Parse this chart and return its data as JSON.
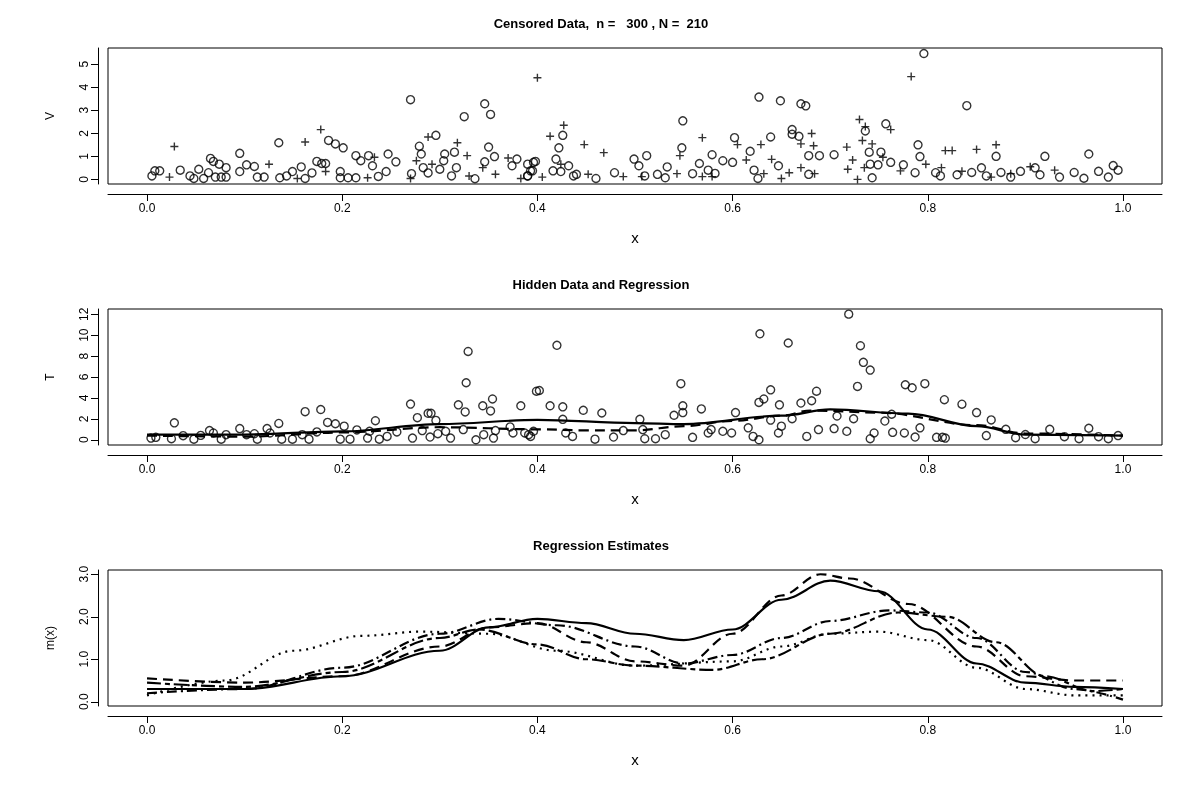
{
  "chart_data": [
    {
      "type": "scatter",
      "title": "Censored Data,  n =   300 , N =  210",
      "xlabel": "x",
      "ylabel": "V",
      "xlim": [
        -0.04,
        1.04
      ],
      "ylim": [
        -0.2,
        5.7
      ],
      "xticks": [
        {
          "value": 0,
          "label": "0.0"
        },
        {
          "value": 0.2,
          "label": "0.2"
        },
        {
          "value": 0.4,
          "label": "0.4"
        },
        {
          "value": 0.6,
          "label": "0.6"
        },
        {
          "value": 0.8,
          "label": "0.8"
        },
        {
          "value": 1,
          "label": "1.0"
        }
      ],
      "yticks": [
        0,
        1,
        2,
        3,
        4,
        5
      ],
      "series": [
        {
          "color": "#000000",
          "marker": "circle",
          "x": [
            0.005,
            0.008,
            0.013,
            0.034,
            0.044,
            0.048,
            0.053,
            0.058,
            0.063,
            0.065,
            0.068,
            0.07,
            0.074,
            0.076,
            0.081,
            0.081,
            0.095,
            0.095,
            0.102,
            0.11,
            0.113,
            0.12,
            0.135,
            0.136,
            0.143,
            0.149,
            0.158,
            0.162,
            0.169,
            0.174,
            0.179,
            0.183,
            0.186,
            0.193,
            0.201,
            0.198,
            0.198,
            0.206,
            0.214,
            0.214,
            0.219,
            0.227,
            0.231,
            0.237,
            0.245,
            0.247,
            0.255,
            0.27,
            0.271,
            0.279,
            0.281,
            0.283,
            0.288,
            0.296,
            0.3,
            0.304,
            0.305,
            0.312,
            0.315,
            0.317,
            0.325,
            0.336,
            0.346,
            0.346,
            0.352,
            0.35,
            0.356,
            0.374,
            0.379,
            0.39,
            0.39,
            0.395,
            0.398,
            0.39,
            0.396,
            0.393,
            0.416,
            0.419,
            0.426,
            0.422,
            0.432,
            0.424,
            0.437,
            0.44,
            0.46,
            0.479,
            0.499,
            0.504,
            0.512,
            0.51,
            0.523,
            0.531,
            0.533,
            0.548,
            0.549,
            0.559,
            0.566,
            0.575,
            0.579,
            0.582,
            0.59,
            0.6,
            0.602,
            0.618,
            0.622,
            0.626,
            0.627,
            0.639,
            0.647,
            0.649,
            0.661,
            0.661,
            0.668,
            0.67,
            0.675,
            0.678,
            0.678,
            0.689,
            0.704,
            0.736,
            0.74,
            0.741,
            0.743,
            0.749,
            0.752,
            0.757,
            0.762,
            0.775,
            0.787,
            0.79,
            0.792,
            0.796,
            0.808,
            0.813,
            0.83,
            0.84,
            0.845,
            0.855,
            0.86,
            0.87,
            0.875,
            0.885,
            0.895,
            0.91,
            0.915,
            0.92,
            0.935,
            0.95,
            0.96,
            0.965,
            0.975,
            0.985,
            0.99,
            0.995
          ],
          "values": [
            0.15,
            0.37,
            0.37,
            0.4,
            0.15,
            0.04,
            0.44,
            0.04,
            0.29,
            0.91,
            0.78,
            0.1,
            0.66,
            0.1,
            0.51,
            0.1,
            1.13,
            0.34,
            0.63,
            0.56,
            0.1,
            0.1,
            1.59,
            0.07,
            0.15,
            0.34,
            0.54,
            0.04,
            0.28,
            0.78,
            0.69,
            0.69,
            1.69,
            1.54,
            1.37,
            0.34,
            0.07,
            0.07,
            0.07,
            1.03,
            0.81,
            1.03,
            0.59,
            0.13,
            0.34,
            1.1,
            0.76,
            3.46,
            0.25,
            1.44,
            1.1,
            0.51,
            0.28,
            1.91,
            0.44,
            0.81,
            1.1,
            0.15,
            1.18,
            0.51,
            2.72,
            0.03,
            0.76,
            3.28,
            2.82,
            1.4,
            0.99,
            0.59,
            0.88,
            0.15,
            0.66,
            0.37,
            0.78,
            0.15,
            0.74,
            0.37,
            0.37,
            0.88,
            1.91,
            1.37,
            0.59,
            0.34,
            0.15,
            0.22,
            0.04,
            0.29,
            0.88,
            0.59,
            1.03,
            0.15,
            0.22,
            0.07,
            0.54,
            1.37,
            2.54,
            0.25,
            0.69,
            0.4,
            1.07,
            0.26,
            0.81,
            0.74,
            1.81,
            1.22,
            0.4,
            0.04,
            3.57,
            1.84,
            0.59,
            3.41,
            2.16,
            1.96,
            1.87,
            3.28,
            3.19,
            1.03,
            0.22,
            1.03,
            1.07,
            2.1,
            1.18,
            0.66,
            0.07,
            0.63,
            1.18,
            2.41,
            0.74,
            0.63,
            0.29,
            1.5,
            0.99,
            5.46,
            0.29,
            0.15,
            0.2,
            3.2,
            0.3,
            0.5,
            0.15,
            1.0,
            0.3,
            0.1,
            0.35,
            0.5,
            0.2,
            1.0,
            0.1,
            0.3,
            0.05,
            1.1,
            0.35,
            0.1,
            0.6,
            0.4
          ]
        },
        {
          "color": "#000000",
          "marker": "cross",
          "x": [
            0.028,
            0.023,
            0.125,
            0.154,
            0.162,
            0.178,
            0.183,
            0.226,
            0.233,
            0.27,
            0.276,
            0.288,
            0.292,
            0.318,
            0.328,
            0.33,
            0.344,
            0.357,
            0.37,
            0.383,
            0.4,
            0.405,
            0.413,
            0.427,
            0.424,
            0.448,
            0.452,
            0.468,
            0.488,
            0.507,
            0.543,
            0.546,
            0.569,
            0.569,
            0.579,
            0.605,
            0.614,
            0.629,
            0.632,
            0.64,
            0.65,
            0.658,
            0.67,
            0.67,
            0.681,
            0.683,
            0.684,
            0.717,
            0.718,
            0.723,
            0.728,
            0.73,
            0.733,
            0.735,
            0.736,
            0.743,
            0.754,
            0.762,
            0.772,
            0.783,
            0.798,
            0.814,
            0.818,
            0.825,
            0.835,
            0.85,
            0.865,
            0.87,
            0.885,
            0.905,
            0.93
          ],
          "values": [
            1.43,
            0.1,
            0.66,
            0.04,
            1.62,
            2.16,
            0.34,
            0.07,
            0.96,
            0.04,
            0.81,
            1.84,
            0.66,
            1.59,
            1.03,
            0.15,
            0.51,
            0.22,
            0.93,
            0.04,
            4.41,
            0.1,
            1.87,
            2.35,
            0.66,
            1.51,
            0.22,
            1.16,
            0.12,
            0.12,
            0.25,
            1.03,
            1.81,
            0.12,
            0.12,
            1.51,
            0.84,
            1.51,
            0.25,
            0.87,
            0.04,
            0.29,
            0.51,
            1.54,
            1.99,
            1.46,
            0.25,
            1.4,
            0.44,
            0.84,
            0.0,
            2.6,
            1.69,
            0.51,
            2.29,
            1.54,
            0.96,
            2.16,
            0.37,
            4.46,
            0.66,
            0.51,
            1.25,
            1.25,
            0.35,
            1.3,
            0.1,
            1.5,
            0.25,
            0.55,
            0.4
          ]
        }
      ]
    },
    {
      "type": "scatter",
      "title": "Hidden Data and Regression",
      "xlabel": "x",
      "ylabel": "T",
      "xlim": [
        -0.04,
        1.04
      ],
      "ylim": [
        -0.5,
        12.5
      ],
      "xticks": [
        {
          "value": 0,
          "label": "0.0"
        },
        {
          "value": 0.2,
          "label": "0.2"
        },
        {
          "value": 0.4,
          "label": "0.4"
        },
        {
          "value": 0.6,
          "label": "0.6"
        },
        {
          "value": 0.8,
          "label": "0.8"
        },
        {
          "value": 1,
          "label": "1.0"
        }
      ],
      "yticks": [
        0,
        2,
        4,
        6,
        8,
        10,
        12
      ],
      "series": [
        {
          "color": "#000000",
          "marker": "circle",
          "x": [
            0.004,
            0.009,
            0.028,
            0.025,
            0.037,
            0.048,
            0.055,
            0.064,
            0.068,
            0.076,
            0.081,
            0.095,
            0.102,
            0.11,
            0.113,
            0.123,
            0.126,
            0.135,
            0.138,
            0.149,
            0.159,
            0.162,
            0.166,
            0.174,
            0.178,
            0.185,
            0.193,
            0.202,
            0.198,
            0.208,
            0.215,
            0.226,
            0.228,
            0.234,
            0.238,
            0.246,
            0.256,
            0.27,
            0.272,
            0.277,
            0.282,
            0.288,
            0.291,
            0.29,
            0.296,
            0.298,
            0.306,
            0.311,
            0.319,
            0.324,
            0.326,
            0.327,
            0.329,
            0.337,
            0.344,
            0.345,
            0.352,
            0.354,
            0.355,
            0.357,
            0.372,
            0.375,
            0.383,
            0.391,
            0.396,
            0.399,
            0.387,
            0.393,
            0.402,
            0.413,
            0.42,
            0.426,
            0.426,
            0.429,
            0.436,
            0.447,
            0.459,
            0.466,
            0.478,
            0.488,
            0.505,
            0.508,
            0.51,
            0.521,
            0.531,
            0.54,
            0.547,
            0.549,
            0.549,
            0.559,
            0.568,
            0.575,
            0.578,
            0.59,
            0.599,
            0.603,
            0.616,
            0.621,
            0.627,
            0.627,
            0.628,
            0.632,
            0.639,
            0.639,
            0.647,
            0.648,
            0.65,
            0.657,
            0.661,
            0.67,
            0.676,
            0.681,
            0.686,
            0.688,
            0.704,
            0.707,
            0.717,
            0.719,
            0.724,
            0.728,
            0.731,
            0.734,
            0.741,
            0.741,
            0.745,
            0.756,
            0.763,
            0.764,
            0.776,
            0.777,
            0.784,
            0.787,
            0.792,
            0.797,
            0.809,
            0.815,
            0.817,
            0.818,
            0.835,
            0.85,
            0.86,
            0.865,
            0.88,
            0.89,
            0.9,
            0.91,
            0.925,
            0.94,
            0.955,
            0.965,
            0.975,
            0.985,
            0.995
          ],
          "values": [
            0.16,
            0.23,
            1.62,
            0.1,
            0.39,
            0.06,
            0.42,
            0.88,
            0.65,
            0.06,
            0.49,
            1.07,
            0.49,
            0.58,
            0.06,
            1.07,
            0.65,
            1.56,
            0.06,
            0.06,
            0.49,
            2.69,
            0.06,
            0.75,
            2.89,
            1.66,
            1.53,
            1.3,
            0.06,
            0.06,
            0.94,
            0.16,
            0.81,
            1.82,
            0.06,
            0.32,
            0.75,
            3.41,
            0.16,
            2.11,
            0.88,
            2.53,
            2.53,
            0.26,
            1.85,
            0.58,
            0.81,
            0.16,
            3.34,
            0.97,
            2.66,
            5.45,
            8.44,
            0,
            3.25,
            0.49,
            2.76,
            3.9,
            0.16,
            0.88,
            1.23,
            0.65,
            3.25,
            0.49,
            0.81,
            4.64,
            0.65,
            0.32,
            4.71,
            3.25,
            9.03,
            3.15,
            1.95,
            0.65,
            0.32,
            2.82,
            0.06,
            2.56,
            0.26,
            0.88,
            1.95,
            0.97,
            0.1,
            0.1,
            0.49,
            2.34,
            5.36,
            3.25,
            2.6,
            0.23,
            2.95,
            0.65,
            0.97,
            0.81,
            0.65,
            2.6,
            1.14,
            0.32,
            0,
            3.57,
            10.13,
            3.9,
            4.77,
            1.88,
            0.65,
            3.34,
            1.3,
            9.25,
            2.01,
            3.51,
            0.32,
            3.73,
            4.64,
            0.97,
            1.07,
            2.27,
            0.81,
            12.01,
            2.01,
            5.1,
            8.99,
            7.4,
            6.66,
            0.1,
            0.65,
            1.79,
            2.44,
            0.71,
            0.65,
            5.26,
            4.97,
            0.26,
            1.14,
            5.36,
            0.23,
            0.23,
            3.83,
            0.16,
            3.4,
            2.6,
            0.4,
            1.9,
            1.0,
            0.2,
            0.5,
            0.1,
            1.0,
            0.3,
            0.1,
            1.1,
            0.3,
            0.1,
            0.4
          ]
        },
        {
          "type": "line",
          "color": "#000000",
          "line_style": "solid",
          "x": [
            0,
            0.1,
            0.2,
            0.3,
            0.4,
            0.5,
            0.55,
            0.65,
            0.7,
            0.78,
            0.85,
            0.9,
            1
          ],
          "values": [
            0.5,
            0.5,
            0.8,
            1.5,
            1.9,
            1.6,
            1.5,
            2.3,
            2.9,
            2.5,
            1.3,
            0.5,
            0.4
          ]
        },
        {
          "type": "line",
          "color": "#000000",
          "line_style": "dashed",
          "x": [
            0,
            0.1,
            0.2,
            0.3,
            0.4,
            0.45,
            0.5,
            0.55,
            0.6,
            0.65,
            0.68,
            0.75,
            0.85,
            0.9,
            1
          ],
          "values": [
            0.4,
            0.3,
            0.7,
            1.2,
            1.0,
            0.9,
            0.9,
            1.3,
            1.8,
            2.3,
            2.8,
            2.6,
            1.4,
            0.6,
            0.4
          ]
        }
      ]
    },
    {
      "type": "line",
      "title": "Regression Estimates",
      "xlabel": "x",
      "ylabel": "m(x)",
      "xlim": [
        -0.04,
        1.04
      ],
      "ylim": [
        -0.1,
        3.1
      ],
      "xticks": [
        {
          "value": 0,
          "label": "0.0"
        },
        {
          "value": 0.2,
          "label": "0.2"
        },
        {
          "value": 0.4,
          "label": "0.4"
        },
        {
          "value": 0.6,
          "label": "0.6"
        },
        {
          "value": 0.8,
          "label": "0.8"
        },
        {
          "value": 1,
          "label": "1.0"
        }
      ],
      "yticks": [
        {
          "value": 0,
          "label": "0.0"
        },
        {
          "value": 1,
          "label": "1.0"
        },
        {
          "value": 2,
          "label": "2.0"
        },
        {
          "value": 3,
          "label": "3.0"
        }
      ],
      "series": [
        {
          "color": "#000000",
          "line_style": "solid",
          "x": [
            0,
            0.1,
            0.2,
            0.3,
            0.35,
            0.4,
            0.45,
            0.5,
            0.55,
            0.6,
            0.65,
            0.7,
            0.75,
            0.8,
            0.85,
            0.9,
            0.95,
            1
          ],
          "values": [
            0.3,
            0.3,
            0.6,
            1.2,
            1.75,
            1.95,
            1.85,
            1.6,
            1.45,
            1.7,
            2.4,
            2.85,
            2.6,
            1.7,
            0.9,
            0.45,
            0.35,
            0.3
          ]
        },
        {
          "color": "#000000",
          "line_style": "dashed",
          "x": [
            0,
            0.1,
            0.2,
            0.3,
            0.35,
            0.4,
            0.45,
            0.5,
            0.55,
            0.6,
            0.65,
            0.69,
            0.72,
            0.78,
            0.85,
            0.9,
            0.95,
            1
          ],
          "values": [
            0.55,
            0.45,
            0.6,
            1.3,
            1.75,
            1.85,
            1.4,
            0.95,
            0.85,
            1.6,
            2.5,
            3.0,
            2.9,
            2.3,
            1.3,
            0.6,
            0.5,
            0.5
          ]
        },
        {
          "color": "#000000",
          "line_style": "dotted",
          "x": [
            0,
            0.08,
            0.15,
            0.22,
            0.28,
            0.35,
            0.42,
            0.5,
            0.6,
            0.65,
            0.7,
            0.75,
            0.8,
            0.85,
            0.9,
            0.95,
            1
          ],
          "values": [
            0.15,
            0.5,
            1.2,
            1.55,
            1.65,
            1.6,
            1.2,
            0.85,
            0.95,
            1.3,
            1.6,
            1.65,
            1.45,
            0.8,
            0.3,
            0.15,
            0.15
          ]
        },
        {
          "color": "#000000",
          "line_style": "dashdot",
          "x": [
            0,
            0.1,
            0.2,
            0.3,
            0.36,
            0.42,
            0.5,
            0.55,
            0.6,
            0.65,
            0.7,
            0.76,
            0.8,
            0.85,
            0.9,
            0.95,
            1
          ],
          "values": [
            0.2,
            0.3,
            0.8,
            1.6,
            1.95,
            1.8,
            1.3,
            0.9,
            1.1,
            1.5,
            1.9,
            2.15,
            2.1,
            1.5,
            0.7,
            0.3,
            0.05
          ]
        },
        {
          "color": "#000000",
          "line_style": "twodash",
          "x": [
            0,
            0.1,
            0.2,
            0.3,
            0.34,
            0.4,
            0.45,
            0.5,
            0.58,
            0.63,
            0.7,
            0.77,
            0.82,
            0.87,
            0.92,
            0.97,
            1
          ],
          "values": [
            0.45,
            0.35,
            0.7,
            1.5,
            1.7,
            1.35,
            1.0,
            0.85,
            0.75,
            1.0,
            1.6,
            2.1,
            2.0,
            1.4,
            0.6,
            0.25,
            0.3
          ]
        }
      ]
    }
  ]
}
